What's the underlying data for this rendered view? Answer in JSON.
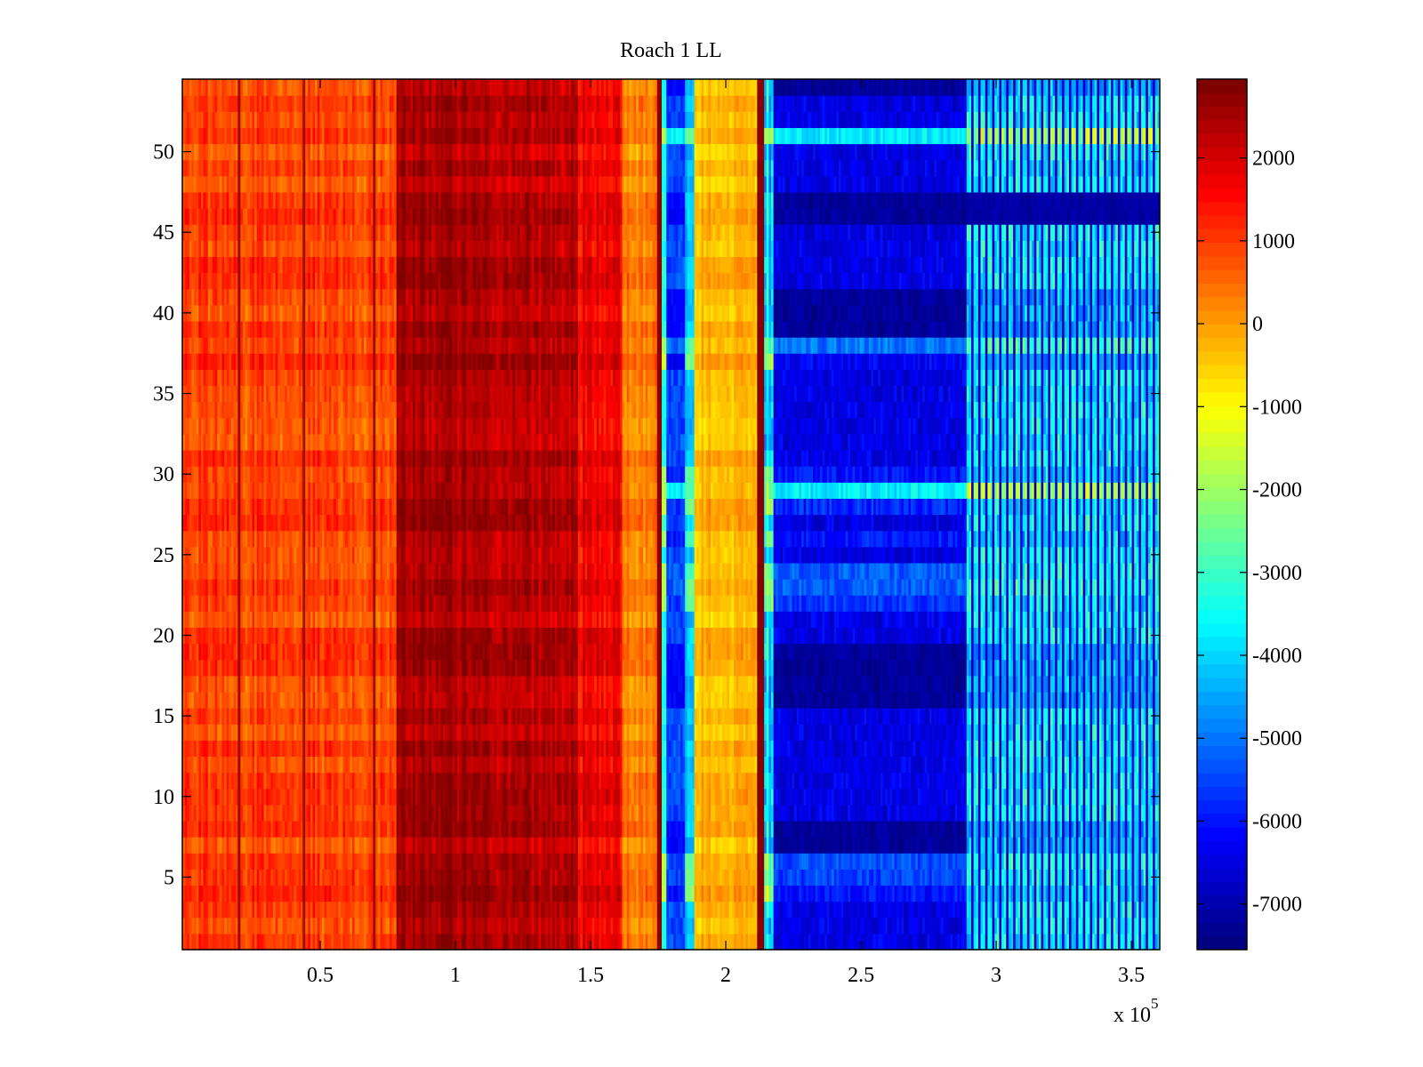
{
  "chart_data": {
    "type": "heatmap",
    "title": "Roach 1 LL",
    "xlabel": "",
    "ylabel": "",
    "x_exponent_label": "x 10",
    "x_exponent_power": "5",
    "xlim": [
      -1000,
      360500
    ],
    "ylim": [
      0.5,
      54.5
    ],
    "rows": 54,
    "columns": 420,
    "x_ticks": [
      50000,
      100000,
      150000,
      200000,
      250000,
      300000,
      350000
    ],
    "x_tick_labels": [
      "0.5",
      "1",
      "1.5",
      "2",
      "2.5",
      "3",
      "3.5"
    ],
    "y_ticks": [
      5,
      10,
      15,
      20,
      25,
      30,
      35,
      40,
      45,
      50
    ],
    "y_tick_labels": [
      "5",
      "10",
      "15",
      "20",
      "25",
      "30",
      "35",
      "40",
      "45",
      "50"
    ],
    "colormap": "jet",
    "colormap_levels": 64,
    "clim": [
      -7550,
      2950
    ],
    "colorbar_ticks": [
      2000,
      1000,
      0,
      -1000,
      -2000,
      -3000,
      -4000,
      -5000,
      -6000,
      -7000
    ],
    "colorbar_tick_labels": [
      "2000",
      "1000",
      "0",
      "-1000",
      "-2000",
      "-3000",
      "-4000",
      "-5000",
      "-6000",
      "-7000"
    ],
    "column_segments": [
      {
        "x_start": 0,
        "x_end": 78000,
        "mean": 900,
        "noise": 700
      },
      {
        "x_start": 78000,
        "x_end": 113000,
        "mean": 2500,
        "noise": 600
      },
      {
        "x_start": 113000,
        "x_end": 145000,
        "mean": 2300,
        "noise": 700
      },
      {
        "x_start": 145000,
        "x_end": 162000,
        "mean": 1700,
        "noise": 700
      },
      {
        "x_start": 162000,
        "x_end": 175000,
        "mean": 300,
        "noise": 600
      },
      {
        "x_start": 175000,
        "x_end": 176500,
        "mean": 2900,
        "noise": 0
      },
      {
        "x_start": 176500,
        "x_end": 178000,
        "mean": -3500,
        "noise": 500
      },
      {
        "x_start": 178000,
        "x_end": 185000,
        "mean": -6200,
        "noise": 900
      },
      {
        "x_start": 185000,
        "x_end": 188000,
        "mean": -4200,
        "noise": 600
      },
      {
        "x_start": 188000,
        "x_end": 212000,
        "mean": -300,
        "noise": 500
      },
      {
        "x_start": 212000,
        "x_end": 214000,
        "mean": 2900,
        "noise": 0
      },
      {
        "x_start": 214000,
        "x_end": 218000,
        "mean": -4000,
        "noise": 1500
      },
      {
        "x_start": 218000,
        "x_end": 289000,
        "mean": -7200,
        "noise": 500
      },
      {
        "x_start": 289000,
        "x_end": 361000,
        "mean": -6300,
        "noise": 1400,
        "striped": true
      }
    ],
    "dark_lines_x": [
      20000,
      44000,
      70000,
      175500,
      213000
    ],
    "blue_region_bright_rows": [
      {
        "row": 51,
        "value": -3800
      },
      {
        "row": 38,
        "value": -5000
      },
      {
        "row": 37,
        "value": -6300
      },
      {
        "row": 30,
        "value": -6000
      },
      {
        "row": 29,
        "value": -3700
      },
      {
        "row": 28,
        "value": -5800
      },
      {
        "row": 26,
        "value": -6000
      },
      {
        "row": 24,
        "value": -5300
      },
      {
        "row": 23,
        "value": -5200
      },
      {
        "row": 22,
        "value": -5600
      },
      {
        "row": 6,
        "value": -5400
      },
      {
        "row": 5,
        "value": -5500
      },
      {
        "row": 4,
        "value": -6000
      }
    ],
    "blue_region_dark_rows": [
      54,
      47,
      46,
      41,
      40,
      39,
      19,
      18,
      17,
      16,
      8,
      7
    ],
    "striped_region_gap_rows": [
      47,
      46
    ]
  }
}
